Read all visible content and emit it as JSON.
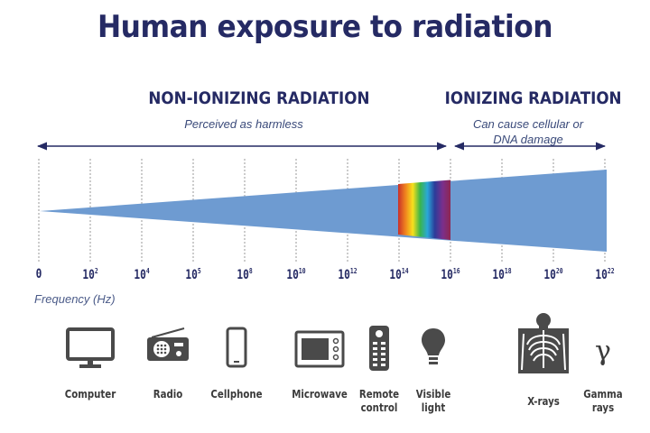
{
  "title": "Human exposure to radiation",
  "non_ionizing": {
    "title": "NON-IONIZING RADIATION",
    "subtitle": "Perceived as harmless"
  },
  "ionizing": {
    "title": "IONIZING RADIATION",
    "subtitle_line1": "Can cause cellular or",
    "subtitle_line2": "DNA damage"
  },
  "axis": {
    "label": "Frequency (Hz)",
    "ticks": [
      {
        "base": "0",
        "exp": ""
      },
      {
        "base": "10",
        "exp": "2"
      },
      {
        "base": "10",
        "exp": "4"
      },
      {
        "base": "10",
        "exp": "5"
      },
      {
        "base": "10",
        "exp": "8"
      },
      {
        "base": "10",
        "exp": "10"
      },
      {
        "base": "10",
        "exp": "12"
      },
      {
        "base": "10",
        "exp": "14"
      },
      {
        "base": "10",
        "exp": "16"
      },
      {
        "base": "10",
        "exp": "18"
      },
      {
        "base": "10",
        "exp": "20"
      },
      {
        "base": "10",
        "exp": "22"
      }
    ]
  },
  "devices": [
    {
      "label1": "Computer",
      "label2": "",
      "icon": "computer-icon"
    },
    {
      "label1": "Radio",
      "label2": "",
      "icon": "radio-icon"
    },
    {
      "label1": "Cellphone",
      "label2": "",
      "icon": "cellphone-icon"
    },
    {
      "label1": "Microwave",
      "label2": "",
      "icon": "microwave-icon"
    },
    {
      "label1": "Remote",
      "label2": "control",
      "icon": "remote-control-icon"
    },
    {
      "label1": "Visible",
      "label2": "light",
      "icon": "light-bulb-icon"
    },
    {
      "label1": "X-rays",
      "label2": "",
      "icon": "xray-icon"
    },
    {
      "label1": "Gamma",
      "label2": "rays",
      "icon": "gamma-icon"
    }
  ],
  "gamma_symbol": "γ",
  "colors": {
    "navy": "#252a64",
    "wedge": "#6e9bd1",
    "icon": "#4a4a4a"
  }
}
